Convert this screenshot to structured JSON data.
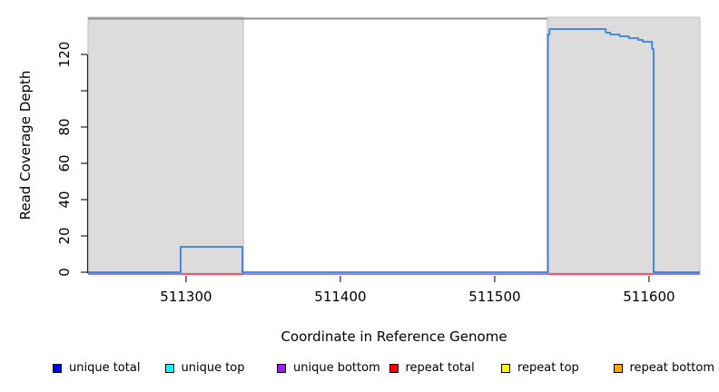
{
  "figure": {
    "background": "#ffffff"
  },
  "chart_data": {
    "type": "line",
    "subtype": "step-coverage",
    "title": "",
    "xlabel": "Coordinate in Reference Genome",
    "ylabel": "Read Coverage Depth",
    "xlim": [
      511236.5,
      511633
    ],
    "ylim": [
      0,
      140.5
    ],
    "grid": false,
    "legend_position": "bottom",
    "x_ticks": [
      {
        "value": 511300,
        "label": "511300"
      },
      {
        "value": 511400,
        "label": "511400"
      },
      {
        "value": 511500,
        "label": "511500"
      },
      {
        "value": 511600,
        "label": "511600"
      }
    ],
    "y_ticks": [
      {
        "value": 0,
        "label": "0"
      },
      {
        "value": 20,
        "label": "20"
      },
      {
        "value": 40,
        "label": "40"
      },
      {
        "value": 60,
        "label": "60"
      },
      {
        "value": 80,
        "label": "80"
      },
      {
        "value": 100,
        "label": ""
      },
      {
        "value": 120,
        "label": "120"
      }
    ],
    "repeat_regions": [
      {
        "start": 511236.5,
        "end": 511337.2
      },
      {
        "start": 511534,
        "end": 511633
      }
    ],
    "region_fill": "#dcdcdc",
    "region_border": "#bfbfbf",
    "top_boundary_line": {
      "start": 511236.5,
      "end": 511534,
      "value": 140,
      "color": "#8f8f8f"
    },
    "series": [
      {
        "name": "unique total",
        "legend_color": "#0000f0",
        "plot_color": "#3a7ce8",
        "points": [
          [
            511236.5,
            0
          ],
          [
            511296.5,
            0
          ],
          [
            511296.5,
            14
          ],
          [
            511336.5,
            14
          ],
          [
            511336.5,
            0
          ],
          [
            511534.5,
            0
          ],
          [
            511534.5,
            131
          ],
          [
            511535.5,
            131
          ],
          [
            511535.5,
            134
          ],
          [
            511572,
            134
          ],
          [
            511572,
            132
          ],
          [
            511575,
            132
          ],
          [
            511575,
            131
          ],
          [
            511581,
            131
          ],
          [
            511581,
            130
          ],
          [
            511587,
            130
          ],
          [
            511587,
            129
          ],
          [
            511593,
            129
          ],
          [
            511593,
            128
          ],
          [
            511596,
            128
          ],
          [
            511596,
            127
          ],
          [
            511602,
            127
          ],
          [
            511602,
            123
          ],
          [
            511603,
            123
          ],
          [
            511603,
            0
          ],
          [
            511633,
            0
          ]
        ]
      },
      {
        "name": "unique top",
        "legend_color": "#00ffff",
        "plot_color": "#00ffff",
        "points": [
          [
            511236.5,
            0
          ],
          [
            511633,
            0
          ]
        ],
        "hidden_under_overlap": true
      },
      {
        "name": "unique bottom",
        "legend_color": "#a020f0",
        "plot_color": "#7d55f0",
        "points": [
          [
            511236.5,
            0
          ],
          [
            511633,
            0
          ]
        ]
      },
      {
        "name": "repeat total",
        "legend_color": "#ff0000",
        "plot_color": "#ff5252",
        "points": [
          [
            511236.5,
            0
          ],
          [
            511633,
            0
          ]
        ],
        "visible_segments": [
          [
            511296.5,
            511336.5
          ],
          [
            511534.5,
            511602.5
          ]
        ]
      },
      {
        "name": "repeat top",
        "legend_color": "#ffff00",
        "plot_color": "#ffff00",
        "points": [
          [
            511236.5,
            0
          ],
          [
            511633,
            0
          ]
        ],
        "hidden_under_overlap": true
      },
      {
        "name": "repeat bottom",
        "legend_color": "#ffa500",
        "plot_color": "#ffa500",
        "points": [
          [
            511236.5,
            0
          ],
          [
            511633,
            0
          ]
        ],
        "hidden_under_overlap": true
      }
    ]
  }
}
